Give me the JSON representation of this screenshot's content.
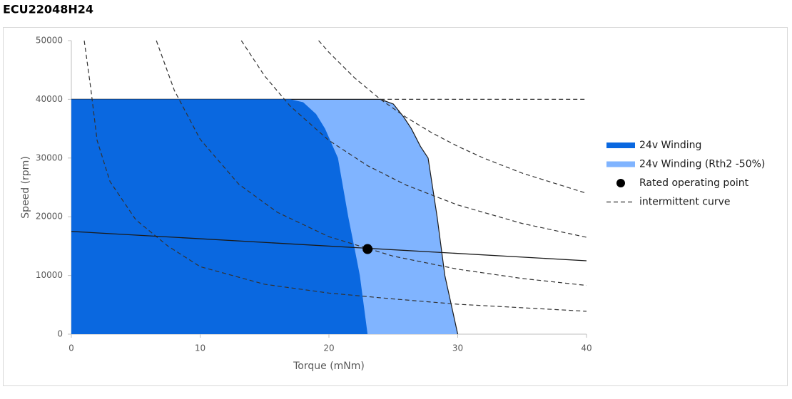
{
  "chart_data": {
    "type": "line",
    "title": "ECU22048H24",
    "x_label": "Torque  (mNm)",
    "y_label": "Speed  (rpm)",
    "xlim": [
      0,
      40
    ],
    "xticks": [
      0,
      10,
      20,
      30,
      40
    ],
    "ylim": [
      0,
      50000
    ],
    "yticks": [
      0,
      10000,
      20000,
      30000,
      40000,
      50000
    ],
    "series": [
      {
        "name": "24v Winding",
        "type": "area",
        "color": "#0a68e0",
        "x": [
          0,
          17,
          18,
          19,
          19.7,
          20.7,
          21.5,
          22,
          22.4,
          23
        ],
        "values": [
          40000,
          40000,
          39500,
          37500,
          35000,
          30000,
          20000,
          14500,
          10000,
          0
        ]
      },
      {
        "name": "24v Winding (Rth2 -50%)",
        "type": "area",
        "color": "#80b4ff",
        "outline": "#1a1a1a",
        "x": [
          0,
          24,
          25,
          25.8,
          26.4,
          27.1,
          27.7,
          28.4,
          29,
          29.5,
          30
        ],
        "values": [
          40000,
          40000,
          39200,
          37000,
          35000,
          32000,
          30000,
          20000,
          10000,
          5000,
          0
        ]
      },
      {
        "name": "Rated operating point",
        "type": "scatter",
        "color": "#000000",
        "x": [
          23
        ],
        "values": [
          14500
        ]
      },
      {
        "name": "intermittent curve",
        "type": "dashed",
        "color": "#333333",
        "x": [
          1,
          1.5,
          2,
          3,
          5,
          7.5,
          10,
          15,
          20,
          25,
          30,
          40,
          null,
          6.6,
          8,
          10,
          13,
          16,
          20,
          25,
          30,
          35,
          40,
          null,
          13.2,
          15,
          17,
          20,
          23,
          26,
          30,
          35,
          40,
          null,
          19.2,
          20,
          22,
          24,
          26,
          28,
          30,
          32,
          35,
          40,
          null,
          24,
          40
        ],
        "values": [
          50000,
          42000,
          33000,
          26000,
          19500,
          15000,
          11500,
          8500,
          7000,
          6000,
          5100,
          3900,
          null,
          50000,
          41500,
          33200,
          25538,
          20750,
          16600,
          13280,
          11067,
          9486,
          8300,
          null,
          50000,
          44000,
          38824,
          33000,
          28696,
          25385,
          22000,
          18857,
          16500,
          null,
          50000,
          48000,
          43636,
          40000,
          36923,
          34286,
          32000,
          30000,
          27429,
          24000,
          null,
          40000,
          40000
        ]
      },
      {
        "type": "solid",
        "color": "#1a1a1a",
        "x": [
          0,
          40
        ],
        "values": [
          17500,
          12500
        ]
      }
    ]
  }
}
